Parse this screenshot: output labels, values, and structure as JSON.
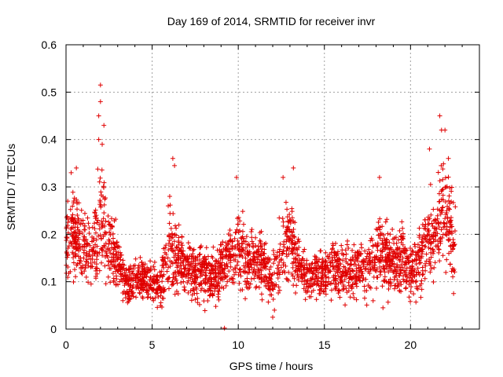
{
  "chart_data": {
    "type": "scatter",
    "title": "Day 169 of 2014, SRMTID for receiver invr",
    "xlabel": "GPS time / hours",
    "ylabel": "SRMTID / TECUs",
    "xlim": [
      0,
      24
    ],
    "ylim": [
      0,
      0.6
    ],
    "x_ticks": [
      0,
      5,
      10,
      15,
      20
    ],
    "x_tick_labels": [
      "0",
      "5",
      "10",
      "15",
      "20"
    ],
    "y_ticks": [
      0,
      0.1,
      0.2,
      0.3,
      0.4,
      0.5,
      0.6
    ],
    "y_tick_labels": [
      "0",
      "0.1",
      "0.2",
      "0.3",
      "0.4",
      "0.5",
      "0.6"
    ],
    "grid": true,
    "marker": "+",
    "color": "#e00000",
    "trend": {
      "description": "Approximate local mean SRMTID by hour",
      "hours": [
        0,
        0.5,
        1,
        1.5,
        2,
        2.5,
        3,
        3.5,
        4,
        4.5,
        5,
        5.5,
        6,
        6.5,
        7,
        7.5,
        8,
        8.5,
        9,
        9.5,
        10,
        10.5,
        11,
        11.5,
        12,
        12.5,
        13,
        13.5,
        14,
        14.5,
        15,
        15.5,
        16,
        16.5,
        17,
        17.5,
        18,
        18.5,
        19,
        19.5,
        20,
        20.5,
        21,
        21.5,
        22,
        22.5
      ],
      "mean": [
        0.17,
        0.2,
        0.17,
        0.16,
        0.22,
        0.18,
        0.14,
        0.1,
        0.1,
        0.11,
        0.1,
        0.09,
        0.17,
        0.15,
        0.13,
        0.12,
        0.12,
        0.11,
        0.13,
        0.16,
        0.17,
        0.14,
        0.15,
        0.13,
        0.1,
        0.15,
        0.2,
        0.14,
        0.11,
        0.11,
        0.12,
        0.13,
        0.12,
        0.13,
        0.12,
        0.13,
        0.15,
        0.15,
        0.14,
        0.15,
        0.12,
        0.14,
        0.18,
        0.21,
        0.25,
        0.2
      ],
      "spread": [
        0.05,
        0.06,
        0.05,
        0.05,
        0.09,
        0.06,
        0.04,
        0.03,
        0.03,
        0.03,
        0.03,
        0.03,
        0.07,
        0.05,
        0.04,
        0.04,
        0.04,
        0.04,
        0.04,
        0.05,
        0.06,
        0.04,
        0.04,
        0.04,
        0.04,
        0.05,
        0.06,
        0.04,
        0.03,
        0.03,
        0.04,
        0.04,
        0.04,
        0.04,
        0.04,
        0.04,
        0.05,
        0.05,
        0.04,
        0.05,
        0.04,
        0.05,
        0.06,
        0.07,
        0.08,
        0.06
      ]
    },
    "notable_points": [
      {
        "x": 2.0,
        "y": 0.515
      },
      {
        "x": 2.0,
        "y": 0.48
      },
      {
        "x": 1.9,
        "y": 0.45
      },
      {
        "x": 2.2,
        "y": 0.43
      },
      {
        "x": 1.9,
        "y": 0.4
      },
      {
        "x": 2.1,
        "y": 0.39
      },
      {
        "x": 6.2,
        "y": 0.36
      },
      {
        "x": 6.3,
        "y": 0.345
      },
      {
        "x": 9.9,
        "y": 0.32
      },
      {
        "x": 12.6,
        "y": 0.32
      },
      {
        "x": 13.2,
        "y": 0.34
      },
      {
        "x": 18.2,
        "y": 0.32
      },
      {
        "x": 21.1,
        "y": 0.38
      },
      {
        "x": 21.7,
        "y": 0.45
      },
      {
        "x": 21.8,
        "y": 0.42
      },
      {
        "x": 22.0,
        "y": 0.42
      },
      {
        "x": 22.2,
        "y": 0.36
      },
      {
        "x": 0.1,
        "y": 0.27
      },
      {
        "x": 0.3,
        "y": 0.33
      },
      {
        "x": 0.6,
        "y": 0.34
      },
      {
        "x": 12.0,
        "y": 0.025
      },
      {
        "x": 12.1,
        "y": 0.04
      },
      {
        "x": 9.2,
        "y": 0.002
      },
      {
        "x": 22.5,
        "y": 0.075
      },
      {
        "x": 18.4,
        "y": 0.045
      },
      {
        "x": 3.3,
        "y": 0.06
      }
    ]
  }
}
